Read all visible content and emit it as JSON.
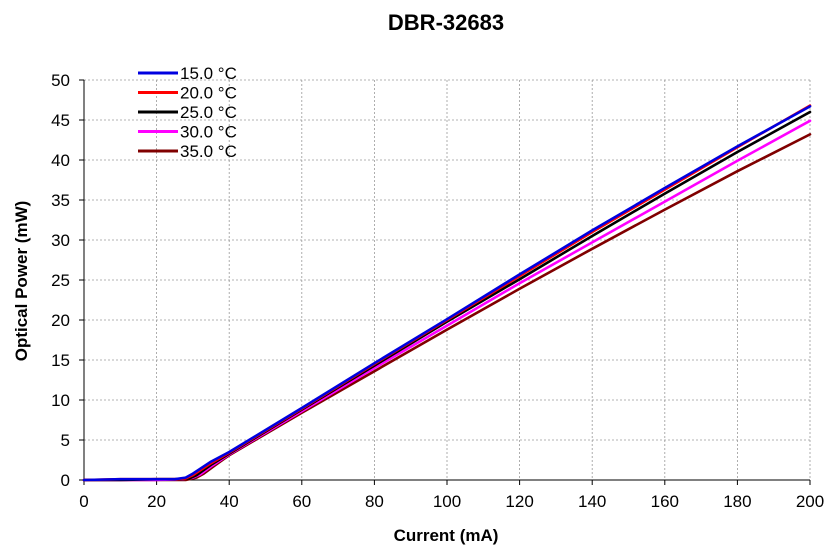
{
  "chart_data": {
    "type": "line",
    "title": "DBR-32683",
    "xlabel": "Current (mA)",
    "ylabel": "Optical Power (mW)",
    "xlim": [
      0,
      200
    ],
    "ylim": [
      0,
      50
    ],
    "xticks": [
      "0",
      "20",
      "40",
      "60",
      "80",
      "100",
      "120",
      "140",
      "160",
      "180",
      "200"
    ],
    "yticks": [
      "0",
      "5",
      "10",
      "15",
      "20",
      "25",
      "30",
      "35",
      "40",
      "45",
      "50"
    ],
    "grid": true,
    "legend_position": "top-left",
    "series": [
      {
        "name": "15.0 °C",
        "color": "#0000e0",
        "points": [
          [
            0,
            0
          ],
          [
            10,
            0.1
          ],
          [
            20,
            0.1
          ],
          [
            25,
            0.1
          ],
          [
            28,
            0.3
          ],
          [
            30,
            0.8
          ],
          [
            35,
            2.3
          ],
          [
            40,
            3.5
          ],
          [
            60,
            9.0
          ],
          [
            80,
            14.6
          ],
          [
            100,
            20.1
          ],
          [
            120,
            25.7
          ],
          [
            140,
            31.2
          ],
          [
            160,
            36.5
          ],
          [
            180,
            41.7
          ],
          [
            200,
            46.7
          ]
        ]
      },
      {
        "name": "20.0 °C",
        "color": "#ff0000",
        "points": [
          [
            0,
            0
          ],
          [
            10,
            0.1
          ],
          [
            20,
            0.1
          ],
          [
            25,
            0.1
          ],
          [
            28,
            0.2
          ],
          [
            30,
            0.6
          ],
          [
            35,
            2.1
          ],
          [
            40,
            3.4
          ],
          [
            60,
            8.9
          ],
          [
            80,
            14.5
          ],
          [
            100,
            20.0
          ],
          [
            120,
            25.5
          ],
          [
            140,
            31.0
          ],
          [
            160,
            36.3
          ],
          [
            180,
            41.6
          ],
          [
            200,
            46.8
          ]
        ]
      },
      {
        "name": "25.0 °C",
        "color": "#000000",
        "points": [
          [
            0,
            0
          ],
          [
            10,
            0
          ],
          [
            20,
            0.1
          ],
          [
            26,
            0.1
          ],
          [
            29,
            0.2
          ],
          [
            31,
            0.6
          ],
          [
            35,
            1.9
          ],
          [
            40,
            3.3
          ],
          [
            60,
            8.8
          ],
          [
            80,
            14.3
          ],
          [
            100,
            19.8
          ],
          [
            120,
            25.1
          ],
          [
            140,
            30.5
          ],
          [
            160,
            35.8
          ],
          [
            180,
            41.0
          ],
          [
            200,
            46.0
          ]
        ]
      },
      {
        "name": "30.0 °C",
        "color": "#ff00ff",
        "points": [
          [
            0,
            0
          ],
          [
            10,
            0
          ],
          [
            20,
            0
          ],
          [
            27,
            0.1
          ],
          [
            30,
            0.3
          ],
          [
            32,
            0.7
          ],
          [
            35,
            1.7
          ],
          [
            40,
            3.2
          ],
          [
            60,
            8.6
          ],
          [
            80,
            14.0
          ],
          [
            100,
            19.3
          ],
          [
            120,
            24.6
          ],
          [
            140,
            29.7
          ],
          [
            160,
            34.8
          ],
          [
            180,
            39.9
          ],
          [
            200,
            44.9
          ]
        ]
      },
      {
        "name": "35.0 °C",
        "color": "#800000",
        "points": [
          [
            0,
            0
          ],
          [
            10,
            0
          ],
          [
            20,
            0
          ],
          [
            28,
            0
          ],
          [
            31,
            0.3
          ],
          [
            33,
            0.8
          ],
          [
            36,
            1.8
          ],
          [
            40,
            3.1
          ],
          [
            60,
            8.4
          ],
          [
            80,
            13.6
          ],
          [
            100,
            18.8
          ],
          [
            120,
            23.9
          ],
          [
            140,
            28.9
          ],
          [
            160,
            33.8
          ],
          [
            180,
            38.6
          ],
          [
            200,
            43.2
          ]
        ]
      }
    ]
  }
}
